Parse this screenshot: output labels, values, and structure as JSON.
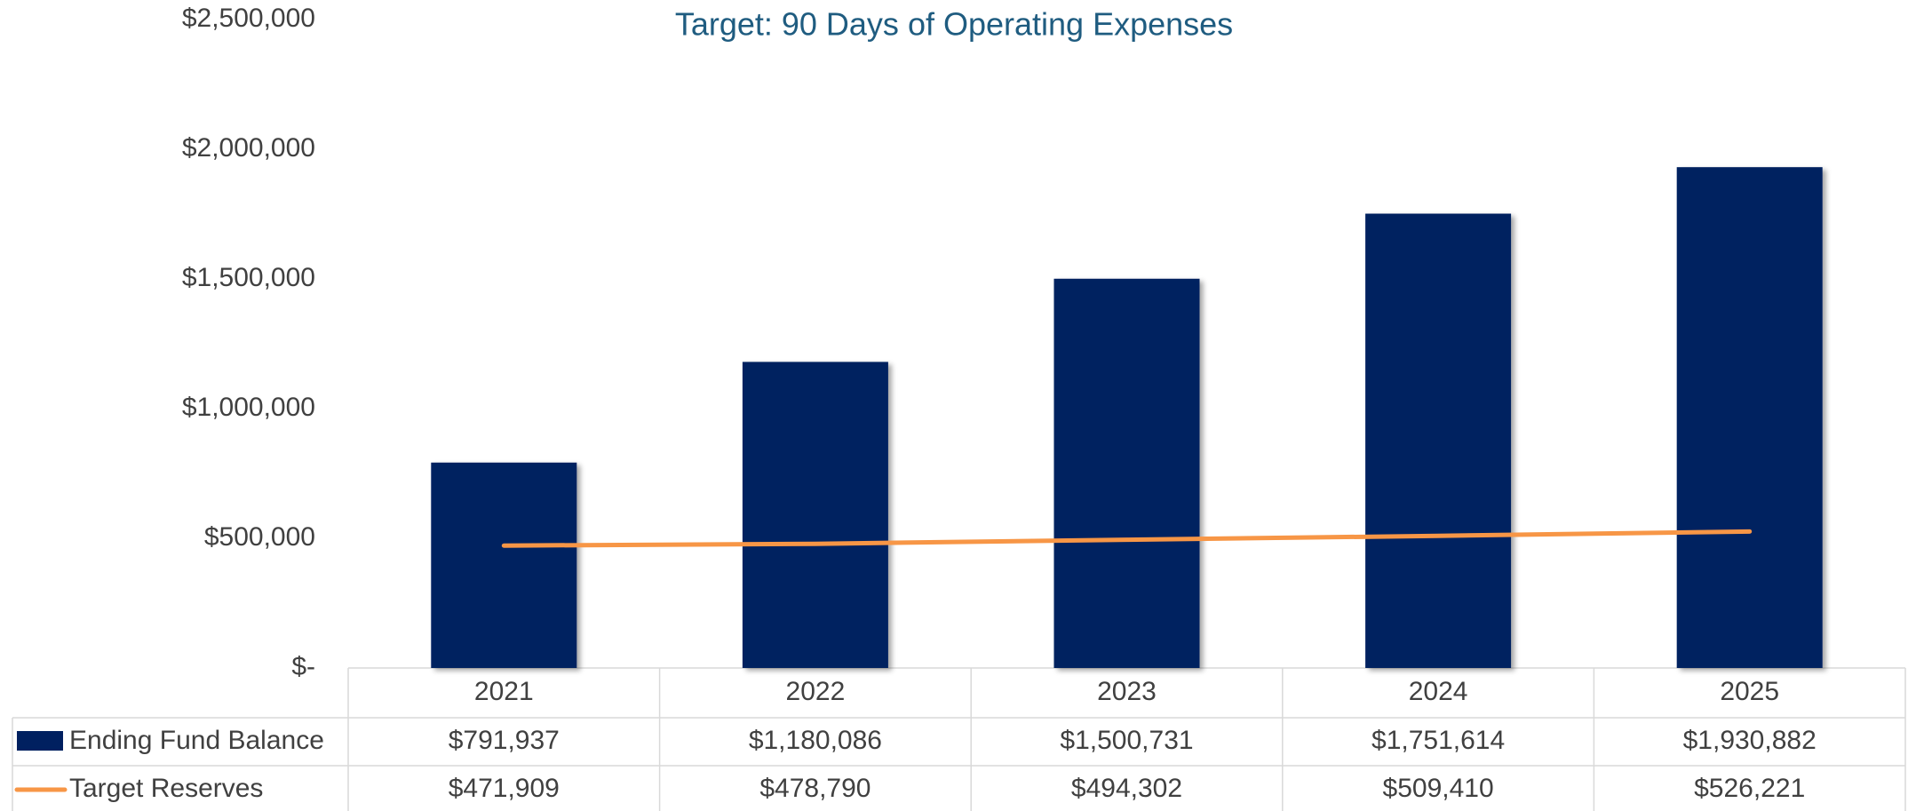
{
  "chart_data": {
    "type": "bar",
    "title": "Target: 90 Days of Operating Expenses",
    "categories": [
      "2021",
      "2022",
      "2023",
      "2024",
      "2025"
    ],
    "series": [
      {
        "name": "Ending Fund Balance",
        "type": "bar",
        "color": "#002060",
        "values": [
          791937,
          1180086,
          1500731,
          1751614,
          1930882
        ],
        "value_labels": [
          "$791,937",
          "$1,180,086",
          "$1,500,731",
          "$1,751,614",
          "$1,930,882"
        ]
      },
      {
        "name": "Target Reserves",
        "type": "line",
        "color": "#f79646",
        "values": [
          471909,
          478790,
          494302,
          509410,
          526221
        ],
        "value_labels": [
          "$471,909",
          "$478,790",
          "$494,302",
          "$509,410",
          "$526,221"
        ]
      }
    ],
    "ylim": [
      0,
      2500000
    ],
    "yticks": [
      {
        "value": 0,
        "label": "$-"
      },
      {
        "value": 500000,
        "label": "$500,000"
      },
      {
        "value": 1000000,
        "label": "$1,000,000"
      },
      {
        "value": 1500000,
        "label": "$1,500,000"
      },
      {
        "value": 2000000,
        "label": "$2,000,000"
      },
      {
        "value": 2500000,
        "label": "$2,500,000"
      }
    ],
    "grid": false
  }
}
